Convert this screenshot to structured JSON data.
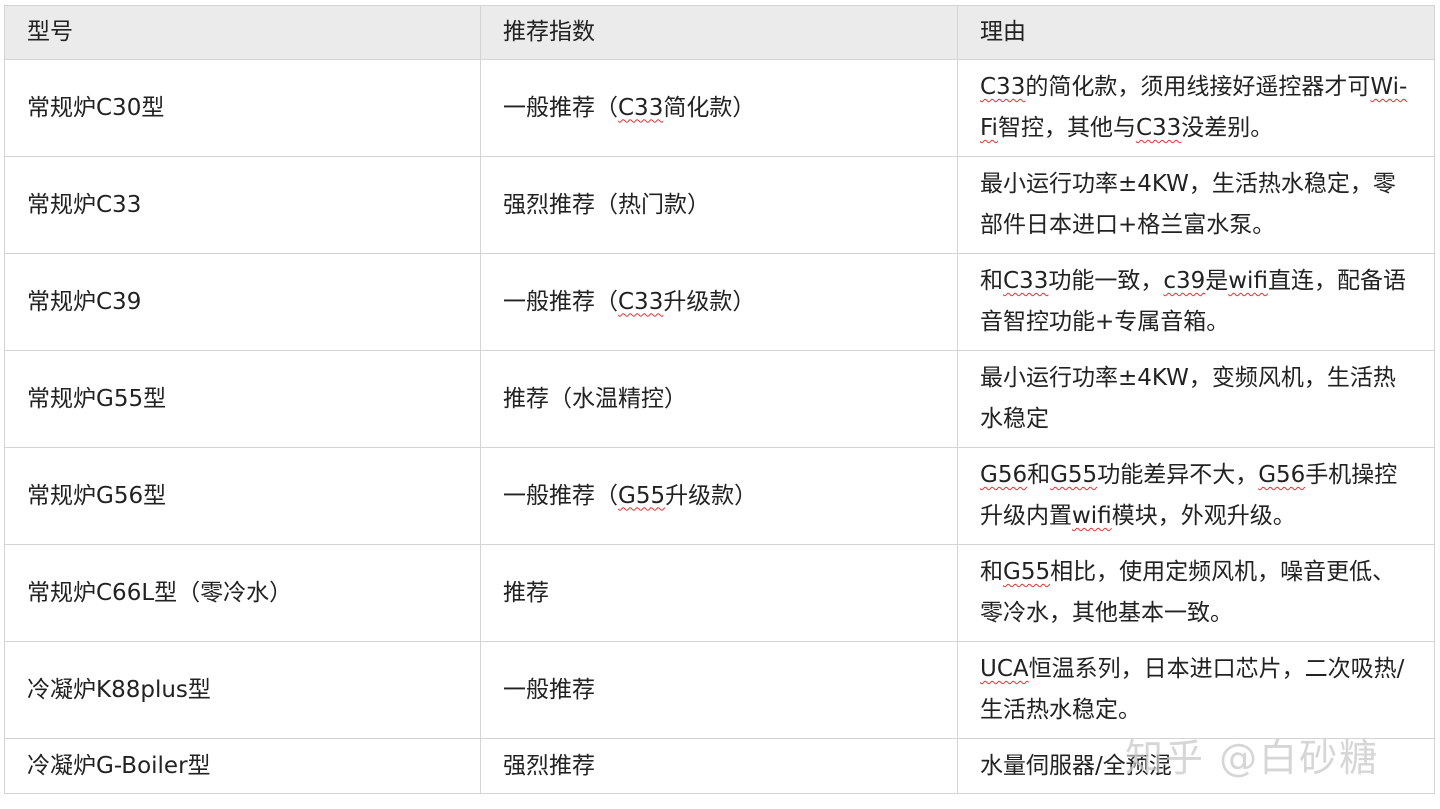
{
  "headers": [
    "型号",
    "推荐指数",
    "理由"
  ],
  "rows": [
    {
      "model": "常规炉C30型",
      "rating": "一般推荐（C33简化款）",
      "reason": "C33的简化款，须用线接好遥控器才可Wi-Fi智控，其他与C33没差别。"
    },
    {
      "model": "常规炉C33",
      "rating": "强烈推荐（热门款）",
      "reason": "最小运行功率±4KW，生活热水稳定，零部件日本进口+格兰富水泵。"
    },
    {
      "model": "常规炉C39",
      "rating": "一般推荐（C33升级款）",
      "reason": "和C33功能一致，c39是wifi直连，配备语音智控功能+专属音箱。"
    },
    {
      "model": "常规炉G55型",
      "rating": "推荐（水温精控）",
      "reason": "最小运行功率±4KW，变频风机，生活热水稳定"
    },
    {
      "model": "常规炉G56型",
      "rating": "一般推荐（G55升级款）",
      "reason": "G56和G55功能差异不大，G56手机操控升级内置wifi模块，外观升级。"
    },
    {
      "model": "常规炉C66L型（零冷水）",
      "rating": "推荐",
      "reason": "和G55相比，使用定频风机，噪音更低、零冷水，其他基本一致。"
    },
    {
      "model": "冷凝炉K88plus型",
      "rating": "一般推荐",
      "reason": "UCA恒温系列，日本进口芯片，二次吸热/生活热水稳定。"
    },
    {
      "model": "冷凝炉G-Boiler型",
      "rating": "强烈推荐",
      "reason": "水量伺服器/全预混"
    }
  ],
  "watermark": "知乎 @白砂糖"
}
